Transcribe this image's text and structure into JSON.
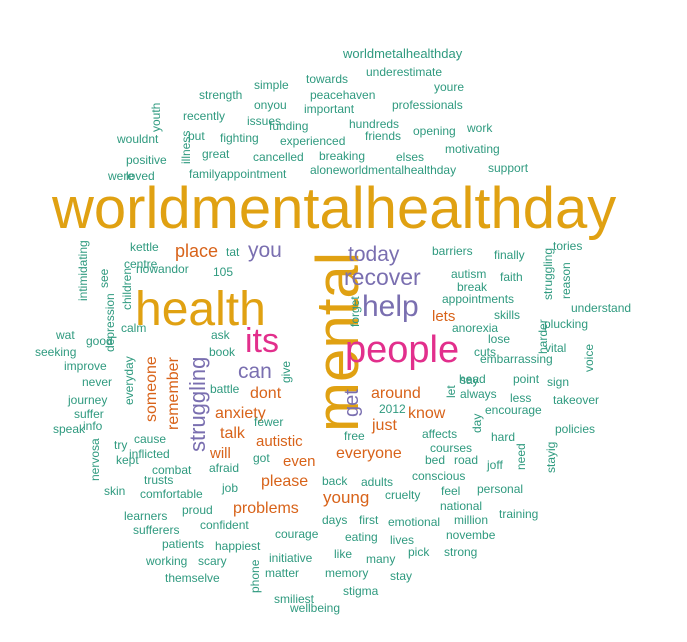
{
  "colors": {
    "gold": "#e0a112",
    "teal": "#2f9a7f",
    "orange": "#d8631a",
    "purple": "#7a6fb0",
    "magenta": "#e22f8c",
    "background": "#ffffff"
  },
  "words": [
    {
      "text": "worldmentalhealthday",
      "tier": "gold"
    },
    {
      "text": "mental",
      "tier": "gold"
    },
    {
      "text": "health",
      "tier": "gold"
    },
    {
      "text": "people",
      "tier": "magenta"
    },
    {
      "text": "its",
      "tier": "magenta"
    },
    {
      "text": "help",
      "tier": "purple"
    },
    {
      "text": "today",
      "tier": "purple"
    },
    {
      "text": "recover",
      "tier": "purple"
    },
    {
      "text": "you",
      "tier": "purple"
    },
    {
      "text": "can",
      "tier": "purple"
    },
    {
      "text": "struggling",
      "tier": "purple"
    },
    {
      "text": "get",
      "tier": "purple"
    },
    {
      "text": "place",
      "tier": "orange"
    },
    {
      "text": "lets",
      "tier": "orange"
    },
    {
      "text": "someone",
      "tier": "orange"
    },
    {
      "text": "remember",
      "tier": "orange"
    },
    {
      "text": "dont",
      "tier": "orange"
    },
    {
      "text": "anxiety",
      "tier": "orange"
    },
    {
      "text": "talk",
      "tier": "orange"
    },
    {
      "text": "autistic",
      "tier": "orange"
    },
    {
      "text": "will",
      "tier": "orange"
    },
    {
      "text": "even",
      "tier": "orange"
    },
    {
      "text": "please",
      "tier": "orange"
    },
    {
      "text": "problems",
      "tier": "orange"
    },
    {
      "text": "young",
      "tier": "orange"
    },
    {
      "text": "around",
      "tier": "orange"
    },
    {
      "text": "know",
      "tier": "orange"
    },
    {
      "text": "just",
      "tier": "orange"
    },
    {
      "text": "everyone",
      "tier": "orange"
    },
    {
      "text": "worldmetalhealthday",
      "tier": "teal"
    },
    {
      "text": "towards",
      "tier": "teal"
    },
    {
      "text": "simple",
      "tier": "teal"
    },
    {
      "text": "underestimate",
      "tier": "teal"
    },
    {
      "text": "strength",
      "tier": "teal"
    },
    {
      "text": "peacehaven",
      "tier": "teal"
    },
    {
      "text": "youre",
      "tier": "teal"
    },
    {
      "text": "onyou",
      "tier": "teal"
    },
    {
      "text": "youth",
      "tier": "teal"
    },
    {
      "text": "important",
      "tier": "teal"
    },
    {
      "text": "professionals",
      "tier": "teal"
    },
    {
      "text": "recently",
      "tier": "teal"
    },
    {
      "text": "issues",
      "tier": "teal"
    },
    {
      "text": "funding",
      "tier": "teal"
    },
    {
      "text": "hundreds",
      "tier": "teal"
    },
    {
      "text": "put",
      "tier": "teal"
    },
    {
      "text": "illness",
      "tier": "teal"
    },
    {
      "text": "opening",
      "tier": "teal"
    },
    {
      "text": "work",
      "tier": "teal"
    },
    {
      "text": "wouldnt",
      "tier": "teal"
    },
    {
      "text": "fighting",
      "tier": "teal"
    },
    {
      "text": "friends",
      "tier": "teal"
    },
    {
      "text": "experienced",
      "tier": "teal"
    },
    {
      "text": "motivating",
      "tier": "teal"
    },
    {
      "text": "great",
      "tier": "teal"
    },
    {
      "text": "breaking",
      "tier": "teal"
    },
    {
      "text": "elses",
      "tier": "teal"
    },
    {
      "text": "positive",
      "tier": "teal"
    },
    {
      "text": "cancelled",
      "tier": "teal"
    },
    {
      "text": "support",
      "tier": "teal"
    },
    {
      "text": "were",
      "tier": "teal"
    },
    {
      "text": "loved",
      "tier": "teal"
    },
    {
      "text": "familyappointment",
      "tier": "teal"
    },
    {
      "text": "aloneworldmentalhealthday",
      "tier": "teal"
    },
    {
      "text": "kettle",
      "tier": "teal"
    },
    {
      "text": "tat",
      "tier": "teal"
    },
    {
      "text": "barriers",
      "tier": "teal"
    },
    {
      "text": "finally",
      "tier": "teal"
    },
    {
      "text": "tories",
      "tier": "teal"
    },
    {
      "text": "centre",
      "tier": "teal"
    },
    {
      "text": "nowandor",
      "tier": "teal"
    },
    {
      "text": "intimidating",
      "tier": "teal"
    },
    {
      "text": "see",
      "tier": "teal"
    },
    {
      "text": "105",
      "tier": "teal"
    },
    {
      "text": "autism",
      "tier": "teal"
    },
    {
      "text": "faith",
      "tier": "teal"
    },
    {
      "text": "struggling",
      "tier": "teal"
    },
    {
      "text": "reason",
      "tier": "teal"
    },
    {
      "text": "children",
      "tier": "teal"
    },
    {
      "text": "break",
      "tier": "teal"
    },
    {
      "text": "depression",
      "tier": "teal"
    },
    {
      "text": "forget",
      "tier": "teal"
    },
    {
      "text": "appointments",
      "tier": "teal"
    },
    {
      "text": "skills",
      "tier": "teal"
    },
    {
      "text": "understand",
      "tier": "teal"
    },
    {
      "text": "wat",
      "tier": "teal"
    },
    {
      "text": "calm",
      "tier": "teal"
    },
    {
      "text": "ask",
      "tier": "teal"
    },
    {
      "text": "anorexia",
      "tier": "teal"
    },
    {
      "text": "plucking",
      "tier": "teal"
    },
    {
      "text": "good",
      "tier": "teal"
    },
    {
      "text": "lose",
      "tier": "teal"
    },
    {
      "text": "harder",
      "tier": "teal"
    },
    {
      "text": "seeking",
      "tier": "teal"
    },
    {
      "text": "book",
      "tier": "teal"
    },
    {
      "text": "cuts",
      "tier": "teal"
    },
    {
      "text": "vital",
      "tier": "teal"
    },
    {
      "text": "voice",
      "tier": "teal"
    },
    {
      "text": "everyday",
      "tier": "teal"
    },
    {
      "text": "embarrassing",
      "tier": "teal"
    },
    {
      "text": "improve",
      "tier": "teal"
    },
    {
      "text": "give",
      "tier": "teal"
    },
    {
      "text": "battle",
      "tier": "teal"
    },
    {
      "text": "head",
      "tier": "teal"
    },
    {
      "text": "point",
      "tier": "teal"
    },
    {
      "text": "sign",
      "tier": "teal"
    },
    {
      "text": "never",
      "tier": "teal"
    },
    {
      "text": "let",
      "tier": "teal"
    },
    {
      "text": "say",
      "tier": "teal"
    },
    {
      "text": "always",
      "tier": "teal"
    },
    {
      "text": "less",
      "tier": "teal"
    },
    {
      "text": "journey",
      "tier": "teal"
    },
    {
      "text": "takeover",
      "tier": "teal"
    },
    {
      "text": "suffer",
      "tier": "teal"
    },
    {
      "text": "2012",
      "tier": "teal"
    },
    {
      "text": "fewer",
      "tier": "teal"
    },
    {
      "text": "encourage",
      "tier": "teal"
    },
    {
      "text": "speak",
      "tier": "teal"
    },
    {
      "text": "info",
      "tier": "teal"
    },
    {
      "text": "day",
      "tier": "teal"
    },
    {
      "text": "policies",
      "tier": "teal"
    },
    {
      "text": "nervosa",
      "tier": "teal"
    },
    {
      "text": "try",
      "tier": "teal"
    },
    {
      "text": "cause",
      "tier": "teal"
    },
    {
      "text": "free",
      "tier": "teal"
    },
    {
      "text": "affects",
      "tier": "teal"
    },
    {
      "text": "hard",
      "tier": "teal"
    },
    {
      "text": "kept",
      "tier": "teal"
    },
    {
      "text": "inflicted",
      "tier": "teal"
    },
    {
      "text": "got",
      "tier": "teal"
    },
    {
      "text": "courses",
      "tier": "teal"
    },
    {
      "text": "joff",
      "tier": "teal"
    },
    {
      "text": "need",
      "tier": "teal"
    },
    {
      "text": "afraid",
      "tier": "teal"
    },
    {
      "text": "combat",
      "tier": "teal"
    },
    {
      "text": "bed",
      "tier": "teal"
    },
    {
      "text": "road",
      "tier": "teal"
    },
    {
      "text": "conscious",
      "tier": "teal"
    },
    {
      "text": "stayig",
      "tier": "teal"
    },
    {
      "text": "trusts",
      "tier": "teal"
    },
    {
      "text": "back",
      "tier": "teal"
    },
    {
      "text": "adults",
      "tier": "teal"
    },
    {
      "text": "skin",
      "tier": "teal"
    },
    {
      "text": "comfortable",
      "tier": "teal"
    },
    {
      "text": "job",
      "tier": "teal"
    },
    {
      "text": "cruelty",
      "tier": "teal"
    },
    {
      "text": "feel",
      "tier": "teal"
    },
    {
      "text": "personal",
      "tier": "teal"
    },
    {
      "text": "proud",
      "tier": "teal"
    },
    {
      "text": "national",
      "tier": "teal"
    },
    {
      "text": "learners",
      "tier": "teal"
    },
    {
      "text": "days",
      "tier": "teal"
    },
    {
      "text": "first",
      "tier": "teal"
    },
    {
      "text": "emotional",
      "tier": "teal"
    },
    {
      "text": "million",
      "tier": "teal"
    },
    {
      "text": "training",
      "tier": "teal"
    },
    {
      "text": "sufferers",
      "tier": "teal"
    },
    {
      "text": "confident",
      "tier": "teal"
    },
    {
      "text": "courage",
      "tier": "teal"
    },
    {
      "text": "eating",
      "tier": "teal"
    },
    {
      "text": "lives",
      "tier": "teal"
    },
    {
      "text": "novembe",
      "tier": "teal"
    },
    {
      "text": "patients",
      "tier": "teal"
    },
    {
      "text": "happiest",
      "tier": "teal"
    },
    {
      "text": "pick",
      "tier": "teal"
    },
    {
      "text": "strong",
      "tier": "teal"
    },
    {
      "text": "working",
      "tier": "teal"
    },
    {
      "text": "scary",
      "tier": "teal"
    },
    {
      "text": "initiative",
      "tier": "teal"
    },
    {
      "text": "like",
      "tier": "teal"
    },
    {
      "text": "many",
      "tier": "teal"
    },
    {
      "text": "themselve",
      "tier": "teal"
    },
    {
      "text": "phone",
      "tier": "teal"
    },
    {
      "text": "matter",
      "tier": "teal"
    },
    {
      "text": "memory",
      "tier": "teal"
    },
    {
      "text": "stay",
      "tier": "teal"
    },
    {
      "text": "smiliest",
      "tier": "teal"
    },
    {
      "text": "stigma",
      "tier": "teal"
    },
    {
      "text": "wellbeing",
      "tier": "teal"
    }
  ]
}
